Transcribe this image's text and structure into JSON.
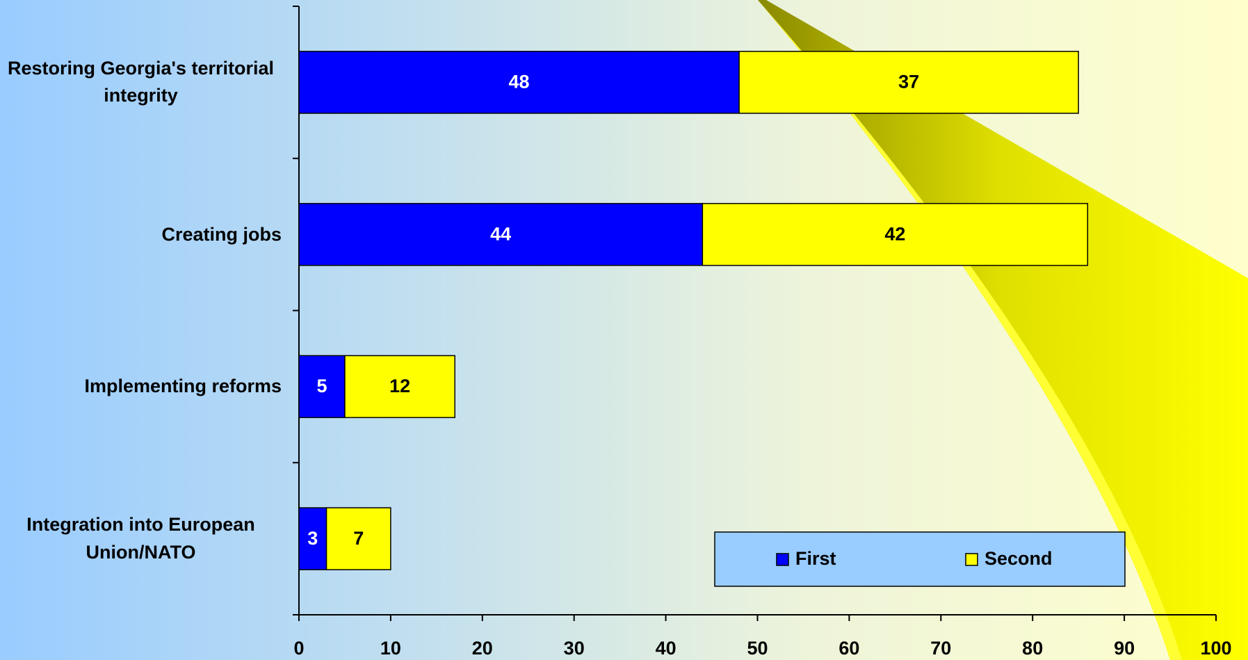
{
  "chart_data": {
    "type": "stacked-hbar",
    "categories": [
      "Restoring Georgia's territorial integrity",
      "Creating jobs",
      "Implementing reforms",
      "Integration into European Union/NATO"
    ],
    "series": [
      {
        "name": "First",
        "color": "#0000ff",
        "label_color": "#ffffff",
        "values": [
          48,
          44,
          5,
          3
        ]
      },
      {
        "name": "Second",
        "color": "#ffff00",
        "label_color": "#000000",
        "values": [
          37,
          42,
          12,
          7
        ]
      }
    ],
    "xlim": [
      0,
      100
    ],
    "xticks": [
      0,
      10,
      20,
      30,
      40,
      50,
      60,
      70,
      80,
      90,
      100
    ],
    "legend": "lower right"
  }
}
